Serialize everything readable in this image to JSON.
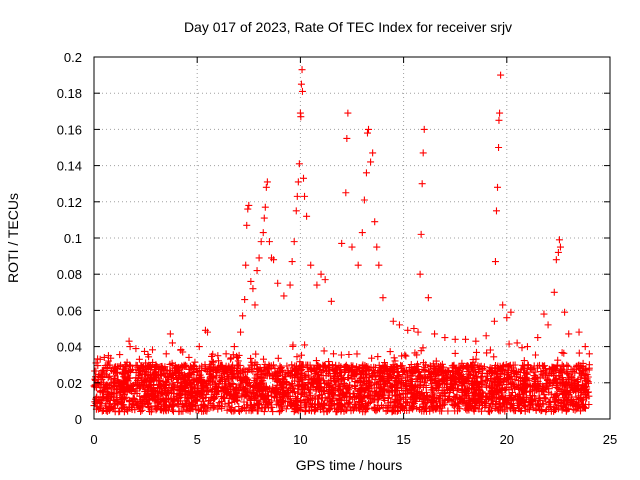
{
  "chart_data": {
    "type": "scatter",
    "title": "Day 017 of 2023, Rate Of TEC Index for receiver srjv",
    "xlabel": "GPS time / hours",
    "ylabel": "ROTI / TECUs",
    "xlim": [
      0,
      25
    ],
    "ylim": [
      0,
      0.2
    ],
    "xticks": [
      "0",
      "5",
      "10",
      "15",
      "20",
      "25"
    ],
    "yticks": [
      "0",
      "0.02",
      "0.04",
      "0.06",
      "0.08",
      "0.1",
      "0.12",
      "0.14",
      "0.16",
      "0.18",
      "0.2"
    ],
    "grid": true,
    "marker": "plus",
    "color": "#ff0000",
    "series": [
      {
        "points": [
          [
            0.1,
            0.031
          ],
          [
            0.3,
            0.033
          ],
          [
            0.5,
            0.034
          ],
          [
            0.7,
            0.035
          ],
          [
            1.0,
            0.028
          ],
          [
            1.5,
            0.03
          ],
          [
            1.7,
            0.043
          ],
          [
            1.75,
            0.04
          ],
          [
            2.2,
            0.033
          ],
          [
            2.5,
            0.031
          ],
          [
            3.0,
            0.03
          ],
          [
            3.5,
            0.036
          ],
          [
            3.7,
            0.047
          ],
          [
            3.8,
            0.042
          ],
          [
            4.2,
            0.038
          ],
          [
            4.6,
            0.034
          ],
          [
            5.1,
            0.04
          ],
          [
            5.4,
            0.049
          ],
          [
            5.5,
            0.048
          ],
          [
            6.0,
            0.035
          ],
          [
            6.4,
            0.036
          ],
          [
            6.8,
            0.04
          ],
          [
            7.1,
            0.048
          ],
          [
            7.2,
            0.057
          ],
          [
            7.3,
            0.066
          ],
          [
            7.35,
            0.085
          ],
          [
            7.4,
            0.107
          ],
          [
            7.45,
            0.116
          ],
          [
            7.5,
            0.118
          ],
          [
            7.6,
            0.076
          ],
          [
            7.7,
            0.072
          ],
          [
            7.8,
            0.063
          ],
          [
            7.9,
            0.082
          ],
          [
            8.0,
            0.089
          ],
          [
            8.1,
            0.098
          ],
          [
            8.2,
            0.103
          ],
          [
            8.25,
            0.111
          ],
          [
            8.3,
            0.117
          ],
          [
            8.35,
            0.128
          ],
          [
            8.4,
            0.131
          ],
          [
            8.5,
            0.098
          ],
          [
            8.6,
            0.089
          ],
          [
            8.7,
            0.088
          ],
          [
            8.9,
            0.075
          ],
          [
            9.2,
            0.068
          ],
          [
            9.5,
            0.074
          ],
          [
            9.6,
            0.087
          ],
          [
            9.7,
            0.098
          ],
          [
            9.8,
            0.115
          ],
          [
            9.85,
            0.123
          ],
          [
            9.9,
            0.131
          ],
          [
            9.95,
            0.141
          ],
          [
            10.0,
            0.169
          ],
          [
            10.02,
            0.167
          ],
          [
            10.05,
            0.185
          ],
          [
            10.08,
            0.193
          ],
          [
            10.1,
            0.181
          ],
          [
            10.15,
            0.133
          ],
          [
            10.2,
            0.123
          ],
          [
            10.3,
            0.112
          ],
          [
            10.5,
            0.085
          ],
          [
            10.8,
            0.074
          ],
          [
            11.0,
            0.08
          ],
          [
            11.2,
            0.077
          ],
          [
            11.5,
            0.065
          ],
          [
            12.0,
            0.097
          ],
          [
            12.2,
            0.125
          ],
          [
            12.25,
            0.155
          ],
          [
            12.3,
            0.169
          ],
          [
            12.5,
            0.095
          ],
          [
            12.8,
            0.085
          ],
          [
            13.0,
            0.103
          ],
          [
            13.1,
            0.121
          ],
          [
            13.2,
            0.136
          ],
          [
            13.25,
            0.158
          ],
          [
            13.3,
            0.16
          ],
          [
            13.4,
            0.142
          ],
          [
            13.5,
            0.147
          ],
          [
            13.6,
            0.109
          ],
          [
            13.7,
            0.095
          ],
          [
            13.8,
            0.085
          ],
          [
            14.0,
            0.067
          ],
          [
            14.5,
            0.054
          ],
          [
            14.8,
            0.052
          ],
          [
            15.2,
            0.049
          ],
          [
            15.5,
            0.05
          ],
          [
            15.7,
            0.048
          ],
          [
            15.8,
            0.08
          ],
          [
            15.85,
            0.102
          ],
          [
            15.9,
            0.13
          ],
          [
            15.95,
            0.147
          ],
          [
            16.0,
            0.16
          ],
          [
            16.2,
            0.067
          ],
          [
            16.5,
            0.047
          ],
          [
            17.0,
            0.045
          ],
          [
            17.5,
            0.044
          ],
          [
            18.0,
            0.044
          ],
          [
            18.5,
            0.043
          ],
          [
            19.0,
            0.046
          ],
          [
            19.4,
            0.054
          ],
          [
            19.45,
            0.087
          ],
          [
            19.5,
            0.115
          ],
          [
            19.55,
            0.128
          ],
          [
            19.6,
            0.15
          ],
          [
            19.62,
            0.165
          ],
          [
            19.65,
            0.169
          ],
          [
            19.7,
            0.19
          ],
          [
            19.8,
            0.063
          ],
          [
            20.0,
            0.056
          ],
          [
            20.2,
            0.059
          ],
          [
            20.5,
            0.042
          ],
          [
            21.0,
            0.04
          ],
          [
            21.5,
            0.045
          ],
          [
            21.8,
            0.058
          ],
          [
            22.0,
            0.052
          ],
          [
            22.3,
            0.07
          ],
          [
            22.4,
            0.088
          ],
          [
            22.5,
            0.092
          ],
          [
            22.55,
            0.099
          ],
          [
            22.6,
            0.095
          ],
          [
            22.8,
            0.059
          ],
          [
            23.0,
            0.047
          ],
          [
            23.5,
            0.048
          ],
          [
            23.8,
            0.04
          ],
          [
            24.0,
            0.036
          ]
        ]
      }
    ]
  }
}
